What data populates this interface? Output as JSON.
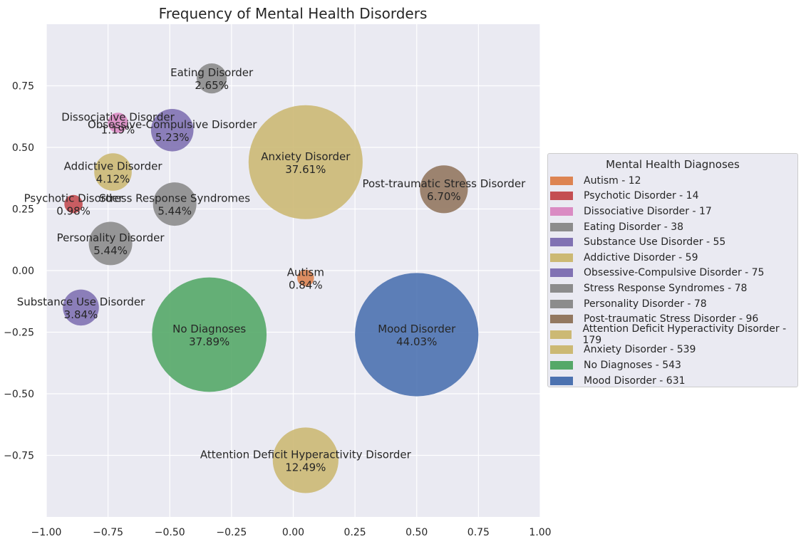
{
  "chart_data": {
    "type": "bubble",
    "title": "Frequency of Mental Health Disorders",
    "xlim": [
      -1.0,
      1.0
    ],
    "ylim": [
      -1.0,
      1.0
    ],
    "x_ticks": [
      "−1.00",
      "−0.75",
      "−0.50",
      "−0.25",
      "0.00",
      "0.25",
      "0.50",
      "0.75",
      "1.00"
    ],
    "x_tick_values": [
      -1.0,
      -0.75,
      -0.5,
      -0.25,
      0.0,
      0.25,
      0.5,
      0.75,
      1.0
    ],
    "y_ticks": [
      "0.75",
      "0.50",
      "0.25",
      "0.00",
      "−0.25",
      "−0.50",
      "−0.75"
    ],
    "y_tick_values": [
      0.75,
      0.5,
      0.25,
      0.0,
      -0.25,
      -0.5,
      -0.75
    ],
    "grid": true,
    "legend_title": "Mental Health Diagnoses",
    "legend_position": "right",
    "bubbles": [
      {
        "name": "Autism",
        "count": 12,
        "percent": "0.84%",
        "x": 0.05,
        "y": -0.03,
        "r": 0.034,
        "color": "#dd8452"
      },
      {
        "name": "Psychotic Disorder",
        "count": 14,
        "percent": "0.98%",
        "x": -0.89,
        "y": 0.27,
        "r": 0.037,
        "color": "#c44e52"
      },
      {
        "name": "Dissociative Disorder",
        "count": 17,
        "percent": "1.19%",
        "x": -0.71,
        "y": 0.6,
        "r": 0.041,
        "color": "#da8bc3"
      },
      {
        "name": "Eating Disorder",
        "count": 38,
        "percent": "2.65%",
        "x": -0.33,
        "y": 0.78,
        "r": 0.061,
        "color": "#8c8c8c"
      },
      {
        "name": "Substance Use Disorder",
        "count": 55,
        "percent": "3.84%",
        "x": -0.86,
        "y": -0.15,
        "r": 0.073,
        "color": "#8172b3"
      },
      {
        "name": "Addictive Disorder",
        "count": 59,
        "percent": "4.12%",
        "x": -0.73,
        "y": 0.4,
        "r": 0.076,
        "color": "#ccb974"
      },
      {
        "name": "Obsessive-Compulsive Disorder",
        "count": 75,
        "percent": "5.23%",
        "x": -0.49,
        "y": 0.57,
        "r": 0.086,
        "color": "#8172b3"
      },
      {
        "name": "Stress Response Syndromes",
        "count": 78,
        "percent": "5.44%",
        "x": -0.48,
        "y": 0.27,
        "r": 0.088,
        "color": "#8c8c8c"
      },
      {
        "name": "Personality Disorder",
        "count": 78,
        "percent": "5.44%",
        "x": -0.74,
        "y": 0.11,
        "r": 0.088,
        "color": "#8c8c8c"
      },
      {
        "name": "Post-traumatic Stress Disorder",
        "count": 96,
        "percent": "6.70%",
        "x": 0.61,
        "y": 0.33,
        "r": 0.097,
        "color": "#937860"
      },
      {
        "name": "Attention Deficit Hyperactivity Disorder",
        "count": 179,
        "percent": "12.49%",
        "x": 0.05,
        "y": -0.77,
        "r": 0.133,
        "color": "#ccb974"
      },
      {
        "name": "Anxiety Disorder",
        "count": 539,
        "percent": "37.61%",
        "x": 0.05,
        "y": 0.44,
        "r": 0.231,
        "color": "#ccb974"
      },
      {
        "name": "No Diagnoses",
        "count": 543,
        "percent": "37.89%",
        "x": -0.34,
        "y": -0.26,
        "r": 0.232,
        "color": "#55a868"
      },
      {
        "name": "Mood Disorder",
        "count": 631,
        "percent": "44.03%",
        "x": 0.5,
        "y": -0.26,
        "r": 0.25,
        "color": "#4c72b0"
      }
    ]
  }
}
